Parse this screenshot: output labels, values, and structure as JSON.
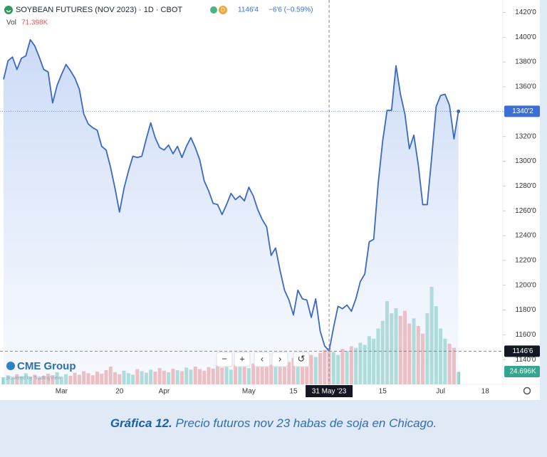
{
  "chart_data": {
    "type": "area",
    "title": "SOYBEAN FUTURES (NOV 2023) · 1D · CBOT",
    "badge": "D",
    "quote": "1146'4",
    "change": "−6'6 (−0.59%)",
    "logo": "CME Group",
    "powered_by": "powered by TradingView",
    "color": "#3b68c4",
    "last_color": "#3b6fd6",
    "categories": [
      null,
      null,
      null,
      null,
      null,
      null,
      null,
      null,
      null,
      null,
      null,
      null,
      null,
      "Mar",
      null,
      null,
      null,
      null,
      null,
      null,
      null,
      null,
      null,
      null,
      null,
      null,
      "20",
      null,
      null,
      null,
      null,
      null,
      null,
      null,
      null,
      null,
      "Apr",
      null,
      null,
      null,
      null,
      null,
      null,
      null,
      null,
      null,
      null,
      null,
      null,
      null,
      null,
      null,
      null,
      null,
      null,
      "May",
      null,
      null,
      null,
      null,
      null,
      null,
      null,
      null,
      null,
      "15",
      null,
      null,
      null,
      null,
      null,
      null,
      null,
      "31 May '23",
      null,
      null,
      null,
      null,
      null,
      null,
      null,
      null,
      null,
      null,
      null,
      "15",
      null,
      null,
      null,
      null,
      null,
      null,
      null,
      null,
      null,
      null,
      null,
      null,
      "Jul",
      null,
      null,
      null,
      null,
      null,
      null,
      null,
      null,
      null,
      "18",
      null,
      null,
      null
    ],
    "values": [
      1366,
      1381,
      1384,
      1374,
      1383,
      1385,
      1398,
      1393,
      1384,
      1374,
      1372,
      1347,
      1361,
      1370,
      1378,
      1373,
      1367,
      1358,
      1338,
      1330,
      1327,
      1325,
      1312,
      1309,
      1295,
      1278,
      1259,
      1278,
      1292,
      1304,
      1303,
      1304,
      1318,
      1331,
      1319,
      1311,
      1309,
      1313,
      1306,
      1312,
      1303,
      1312,
      1319,
      1311,
      1301,
      1284,
      1276,
      1266,
      1265,
      1257,
      1265,
      1274,
      1269,
      1272,
      1268,
      1279,
      1272,
      1261,
      1253,
      1247,
      1224,
      1230,
      1212,
      1196,
      1188,
      1176,
      1196,
      1189,
      1188,
      1174,
      1189,
      1163,
      1151,
      1147,
      1166,
      1183,
      1181,
      1184,
      1179,
      1189,
      1203,
      1209,
      1235,
      1237,
      1282,
      1316,
      1341,
      1341,
      1377,
      1354,
      1338,
      1310,
      1321,
      1297,
      1265,
      1265,
      1303,
      1344,
      1353,
      1354,
      1345,
      1318,
      1340.25,
      null,
      null,
      null,
      null,
      null,
      null,
      null,
      null,
      null
    ],
    "value_labels": [
      null,
      null,
      null,
      null,
      null,
      null,
      null,
      null,
      null,
      null,
      null,
      null,
      null,
      null,
      null,
      null,
      null,
      null,
      null,
      null,
      null,
      null,
      null,
      null,
      null,
      null,
      null,
      null,
      null,
      null,
      null,
      null,
      null,
      null,
      null,
      null,
      null,
      null,
      null,
      null,
      null,
      null,
      null,
      null,
      null,
      null,
      null,
      null,
      null,
      null,
      null,
      null,
      null,
      null,
      null,
      null,
      null,
      null,
      null,
      null,
      null,
      null,
      null,
      null,
      null,
      null,
      null,
      null,
      null,
      null,
      null,
      null,
      null,
      null,
      null,
      null,
      null,
      null,
      null,
      null,
      null,
      null,
      null,
      null,
      null,
      null,
      null,
      null,
      null,
      null,
      null,
      null,
      null,
      null,
      null,
      null,
      null,
      null,
      null,
      null,
      null,
      null,
      "1340'2",
      null,
      null,
      null,
      null,
      null,
      null,
      null,
      null,
      null
    ],
    "crosshair_price": {
      "value": 1146.75,
      "label": "1146'6"
    },
    "volume": {
      "name": "Vol",
      "up_color": "#8ed2c6",
      "down_color": "#f2a3a3",
      "last_color": "#35a58f",
      "values": [
        14,
        18,
        12,
        20,
        16,
        22,
        15,
        19,
        13,
        17,
        21,
        18,
        24,
        15,
        20,
        17,
        23,
        19,
        26,
        22,
        18,
        25,
        21,
        28,
        35,
        24,
        20,
        27,
        22,
        19,
        30,
        26,
        23,
        29,
        25,
        32,
        27,
        24,
        31,
        28,
        26,
        33,
        29,
        35,
        30,
        27,
        34,
        31,
        38,
        33,
        36,
        29,
        40,
        34,
        38,
        32,
        41,
        37,
        35,
        44,
        39,
        46,
        42,
        48,
        44,
        52,
        47,
        55,
        50,
        58,
        54,
        62,
        68,
        71.398,
        64,
        58,
        70,
        66,
        75,
        72,
        82,
        78,
        95,
        90,
        110,
        125,
        164,
        140,
        150,
        135,
        145,
        120,
        130,
        115,
        100,
        140,
        192,
        154,
        110,
        90,
        80,
        72,
        24.696,
        null,
        null,
        null,
        null,
        null,
        null,
        null,
        null,
        null
      ],
      "value_labels": [
        null,
        null,
        null,
        null,
        null,
        null,
        null,
        null,
        null,
        null,
        null,
        null,
        null,
        null,
        null,
        null,
        null,
        null,
        null,
        null,
        null,
        null,
        null,
        null,
        null,
        null,
        null,
        null,
        null,
        null,
        null,
        null,
        null,
        null,
        null,
        null,
        null,
        null,
        null,
        null,
        null,
        null,
        null,
        null,
        null,
        null,
        null,
        null,
        null,
        null,
        null,
        null,
        null,
        null,
        null,
        null,
        null,
        null,
        null,
        null,
        null,
        null,
        null,
        null,
        null,
        null,
        null,
        null,
        null,
        null,
        null,
        null,
        null,
        "71.398K",
        null,
        null,
        null,
        null,
        null,
        null,
        null,
        null,
        null,
        null,
        null,
        null,
        null,
        null,
        null,
        null,
        null,
        null,
        null,
        null,
        null,
        null,
        null,
        null,
        null,
        null,
        null,
        null,
        "24.696K",
        null,
        null,
        null,
        null,
        null,
        null,
        null,
        null,
        null
      ]
    },
    "ylim": [
      1120,
      1430
    ],
    "yticks": [
      {
        "value": 1140,
        "label": "1140'0"
      },
      {
        "value": 1160,
        "label": "1160'0"
      },
      {
        "value": 1180,
        "label": "1180'0"
      },
      {
        "value": 1200,
        "label": "1200'0"
      },
      {
        "value": 1220,
        "label": "1220'0"
      },
      {
        "value": 1240,
        "label": "1240'0"
      },
      {
        "value": 1260,
        "label": "1260'0"
      },
      {
        "value": 1280,
        "label": "1280'0"
      },
      {
        "value": 1300,
        "label": "1300'0"
      },
      {
        "value": 1320,
        "label": "1320'0"
      },
      {
        "value": 1340,
        "label": "1340'0"
      },
      {
        "value": 1360,
        "label": "1360'0"
      },
      {
        "value": 1380,
        "label": "1380'0"
      },
      {
        "value": 1400,
        "label": "1400'0"
      },
      {
        "value": 1420,
        "label": "1420'0"
      }
    ],
    "grid": false
  },
  "caption": {
    "label": "Gráfica 12.",
    "text": "Precio futuros nov 23 habas de soja en Chicago."
  }
}
